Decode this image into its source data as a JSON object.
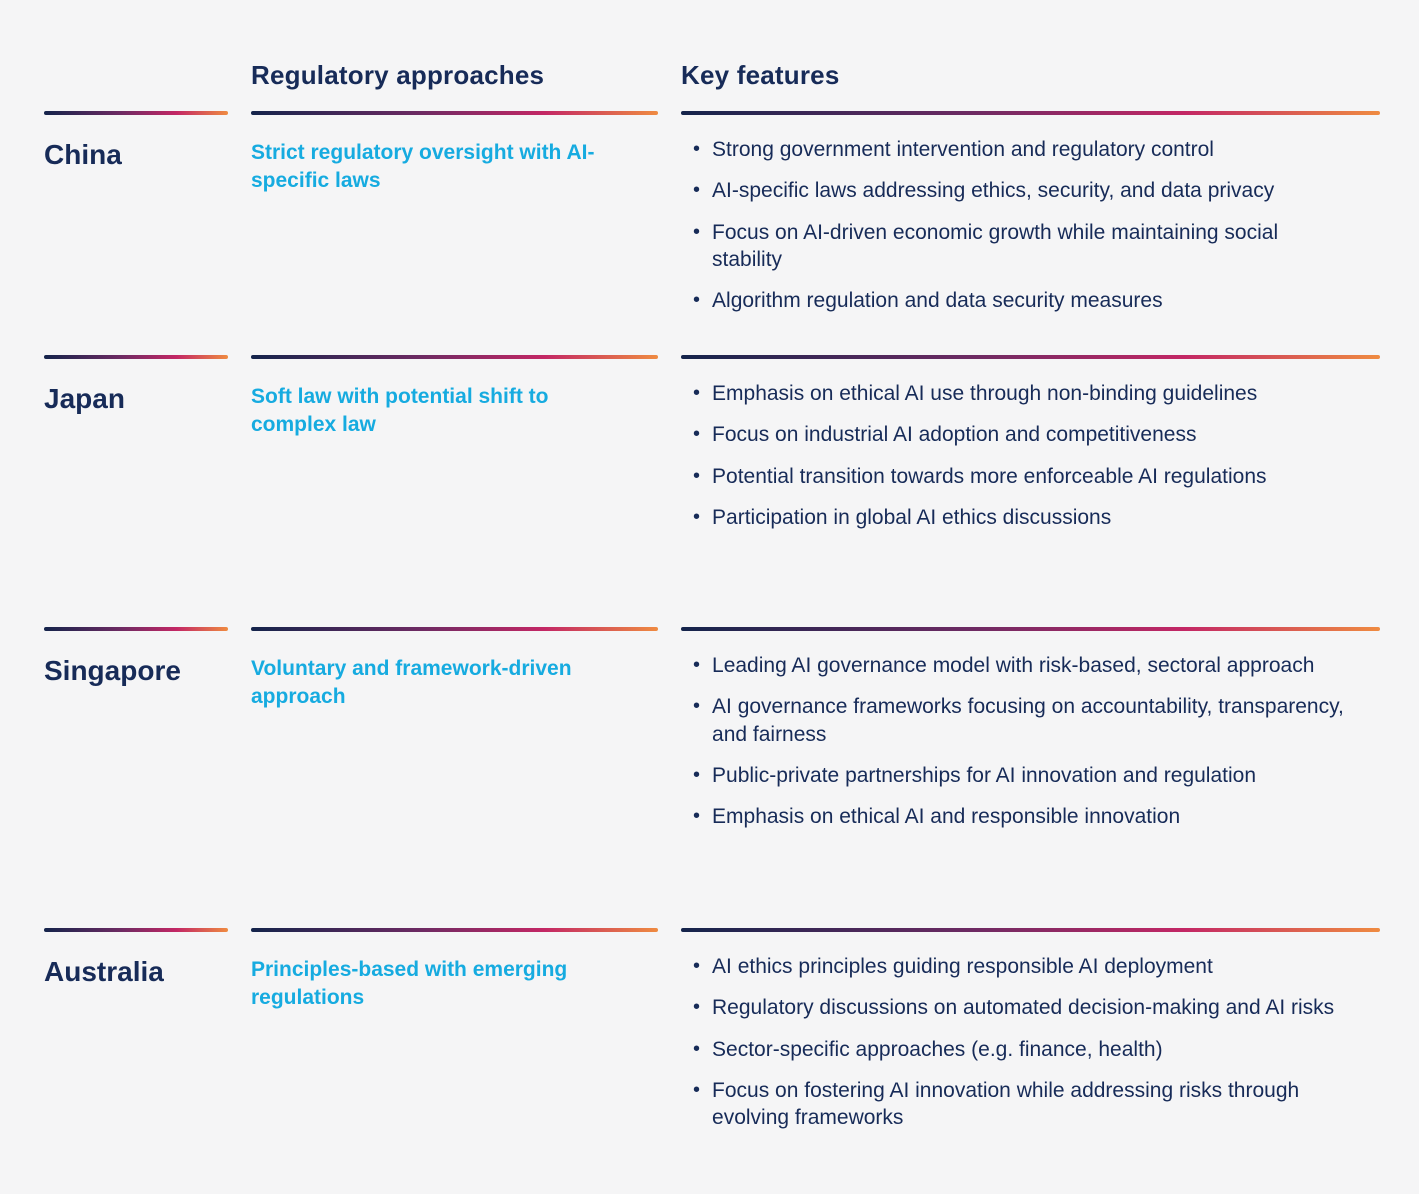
{
  "header": {
    "approaches_label": "Regulatory approaches",
    "features_label": "Key features"
  },
  "colors": {
    "background": "#f5f5f6",
    "heading_text": "#172b58",
    "approach_text": "#16abe0",
    "bullet_text": "#172b58",
    "rule_gradient_start": "#14244b",
    "rule_gradient_mid": "#c32765",
    "rule_gradient_end": "#ef8b41"
  },
  "rows": [
    {
      "country": "China",
      "approach": "Strict regulatory oversight with AI-specific laws",
      "features": [
        "Strong government intervention and regulatory control",
        "AI-specific laws addressing ethics, security, and data privacy",
        "Focus on AI-driven economic growth while maintaining social stability",
        "Algorithm regulation and data security measures"
      ]
    },
    {
      "country": "Japan",
      "approach": "Soft law with potential shift to complex law",
      "features": [
        "Emphasis on ethical AI use through non-binding guidelines",
        "Focus on industrial AI adoption and competitiveness",
        "Potential transition towards more enforceable AI regulations",
        "Participation in global AI ethics discussions"
      ]
    },
    {
      "country": "Singapore",
      "approach": "Voluntary and framework-driven approach",
      "features": [
        "Leading AI governance model with risk-based, sectoral approach",
        "AI governance frameworks focusing on accountability, transparency, and fairness",
        "Public-private partnerships for AI innovation and regulation",
        "Emphasis on ethical AI and responsible innovation"
      ]
    },
    {
      "country": "Australia",
      "approach": "Principles-based with emerging regulations",
      "features": [
        "AI ethics principles guiding responsible AI deployment",
        "Regulatory discussions on automated decision-making and AI risks",
        "Sector-specific approaches (e.g. finance, health)",
        "Focus on fostering AI innovation while addressing risks through evolving frameworks"
      ]
    }
  ]
}
